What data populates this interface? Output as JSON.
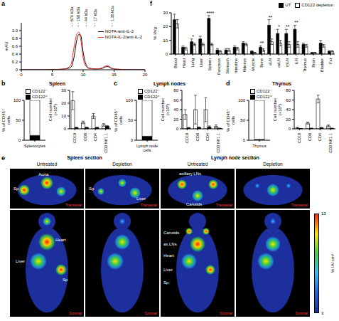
{
  "chart_data": [
    {
      "label": "a",
      "type": "line",
      "x": [
        0,
        2,
        4,
        6,
        7,
        8,
        8.5,
        9,
        9.3,
        9.6,
        10,
        10.5,
        11,
        12,
        13,
        13.5,
        14,
        14.5,
        15,
        16,
        18,
        20
      ],
      "series": [
        {
          "name": "NOTA-anti-IL-2",
          "color": "#000000",
          "values": [
            0,
            0,
            0,
            0.01,
            0.02,
            0.06,
            0.3,
            0.78,
            0.9,
            0.88,
            0.45,
            0.12,
            0.04,
            0.02,
            0.03,
            0.07,
            0.08,
            0.04,
            0.02,
            0.01,
            0,
            0
          ]
        },
        {
          "name": "NOTA-IL-2/anti-IL-2",
          "color": "#e8312a",
          "values": [
            0,
            0,
            0,
            0.01,
            0.02,
            0.12,
            0.55,
            0.92,
            0.96,
            0.78,
            0.3,
            0.08,
            0.03,
            0.02,
            0.04,
            0.09,
            0.1,
            0.05,
            0.02,
            0.01,
            0,
            0
          ]
        }
      ],
      "xlim": [
        0,
        20
      ],
      "xticks": [
        0,
        5,
        10,
        15,
        20
      ],
      "ylim": [
        0,
        1.2
      ],
      "yticks": [
        0,
        0.2,
        0.4,
        0.6,
        0.8,
        {
          "value": 1,
          "label": "1.0"
        }
      ],
      "ylabel": "mAU",
      "legend": "top-right",
      "markers": [
        {
          "x": 8.2,
          "label": "670 kDa"
        },
        {
          "x": 9.2,
          "label": "158 kDa"
        },
        {
          "x": 10.5,
          "label": "44 kDa"
        },
        {
          "x": 11.9,
          "label": "17 kDa"
        },
        {
          "x": 14.7,
          "label": "1.35 kDa"
        }
      ]
    },
    {
      "label": "f",
      "type": "bar",
      "categories": [
        "Blood",
        "Heart",
        "Lung",
        "Liver",
        "Spleen",
        "Pancreas",
        "Stomach",
        "Intestine",
        "Kidneys",
        "Muscle",
        "Bone",
        "aLN",
        "axLN",
        "mLN",
        "iLN",
        "Thymus",
        "Brain",
        "Bladder",
        "Fat"
      ],
      "series": [
        {
          "name": "UT",
          "color": "#000000",
          "values": [
            25,
            5,
            9,
            11,
            26,
            3,
            3,
            5,
            8,
            2,
            5,
            21,
            15,
            15,
            18,
            7,
            1,
            8,
            2
          ],
          "errors": [
            4,
            1,
            2,
            2,
            2,
            1,
            1,
            1,
            1,
            0.5,
            1,
            4,
            3,
            3,
            3,
            1,
            0.3,
            2,
            0.5
          ]
        },
        {
          "name": "CD122 depletion",
          "color": "#ffffff",
          "values": [
            22,
            4,
            7,
            7,
            7,
            2,
            3,
            4,
            7,
            1,
            3,
            9,
            8,
            7,
            7,
            6,
            1,
            6,
            2
          ],
          "errors": [
            3,
            1,
            1,
            1,
            1,
            0.5,
            1,
            1,
            1,
            0.3,
            1,
            2,
            2,
            2,
            2,
            1,
            0.3,
            1,
            0.5
          ]
        }
      ],
      "ylim": [
        0,
        30
      ],
      "yticks": [
        0,
        10,
        20,
        30
      ],
      "ylabel": "% IA/g",
      "legend": "top-right",
      "annotations": [
        {
          "category": "Lung",
          "text": "*"
        },
        {
          "category": "Spleen",
          "text": "****"
        },
        {
          "category": "Bone",
          "text": "**"
        },
        {
          "category": "aLN",
          "text": "**"
        },
        {
          "category": "axLN",
          "text": "*"
        },
        {
          "category": "mLN",
          "text": "**"
        },
        {
          "category": "iLN",
          "text": "**"
        }
      ]
    },
    {
      "label": "b",
      "title": "Spleen",
      "charts": [
        {
          "type": "bar",
          "stacked": true,
          "categories": [
            "Splenocytes"
          ],
          "series": [
            {
              "name": "CD122⁻",
              "color": "#ffffff",
              "values": [
                88
              ]
            },
            {
              "name": "CD122⁺",
              "color": "#000000",
              "values": [
                12
              ]
            }
          ],
          "ylim": [
            0,
            100
          ],
          "yticks": [
            0,
            50,
            100
          ],
          "ylabel": "% of CD45⁺ cells",
          "legend": "top"
        },
        {
          "type": "bar",
          "categories": [
            "CD19",
            "CD8",
            "CD4",
            "CD3 NK1.1"
          ],
          "series": [
            {
              "name": "CD122⁻",
              "color": "#ffffff",
              "values": [
                22,
                5,
                10,
                3
              ],
              "errors": [
                7,
                1,
                2,
                1
              ]
            },
            {
              "name": "CD122⁺",
              "color": "#000000",
              "values": [
                1,
                1,
                1,
                2
              ],
              "errors": [
                0.3,
                0.3,
                0.3,
                0.5
              ]
            }
          ],
          "ylim": [
            0,
            30
          ],
          "yticks": [
            0,
            10,
            20,
            30
          ],
          "ylabel": "Cell number (×10⁶)"
        }
      ]
    },
    {
      "label": "c",
      "title": "Lymph nodes",
      "charts": [
        {
          "type": "bar",
          "stacked": true,
          "categories": [
            "Lymph node cells"
          ],
          "series": [
            {
              "name": "CD122⁻",
              "color": "#ffffff",
              "values": [
                90
              ]
            },
            {
              "name": "CD122⁺",
              "color": "#000000",
              "values": [
                10
              ]
            }
          ],
          "ylim": [
            0,
            100
          ],
          "yticks": [
            0,
            50,
            100
          ],
          "ylabel": "% of CD45⁺ cells",
          "legend": "top"
        },
        {
          "type": "bar",
          "categories": [
            "CD19",
            "CD8",
            "CD4",
            "CD3 NK1.1"
          ],
          "series": [
            {
              "name": "CD122⁻",
              "color": "#ffffff",
              "values": [
                30,
                40,
                40,
                5
              ],
              "errors": [
                10,
                30,
                25,
                3
              ]
            },
            {
              "name": "CD122⁺",
              "color": "#000000",
              "values": [
                2,
                3,
                4,
                1
              ],
              "errors": [
                1,
                1,
                2,
                0.5
              ]
            }
          ],
          "ylim": [
            0,
            80
          ],
          "yticks": [
            0,
            20,
            40,
            60,
            80
          ],
          "ylabel": "Cell number (×10⁶)"
        }
      ]
    },
    {
      "label": "d",
      "title": "Thymus",
      "charts": [
        {
          "type": "bar",
          "stacked": true,
          "categories": [
            "Thymus"
          ],
          "series": [
            {
              "name": "CD122⁻",
              "color": "#ffffff",
              "values": [
                98
              ]
            },
            {
              "name": "CD122⁺",
              "color": "#000000",
              "values": [
                2
              ]
            }
          ],
          "ylim": [
            0,
            100
          ],
          "yticks": [
            0,
            50,
            100
          ],
          "ylabel": "% of CD45⁺ cells",
          "legend": "top"
        },
        {
          "type": "bar",
          "categories": [
            "CD19",
            "CD8",
            "CD4",
            "CD3 NK1.1"
          ],
          "series": [
            {
              "name": "CD122⁻",
              "color": "#ffffff",
              "values": [
                2,
                12,
                62,
                6
              ],
              "errors": [
                1,
                2,
                8,
                2
              ]
            },
            {
              "name": "CD122⁺",
              "color": "#000000",
              "values": [
                0.5,
                1,
                2,
                1
              ],
              "errors": [
                0.2,
                0.5,
                1,
                0.5
              ]
            }
          ],
          "ylim": [
            0,
            80
          ],
          "yticks": [
            0,
            20,
            40,
            60,
            80
          ],
          "ylabel": "Cell number (×10⁶)"
        }
      ]
    }
  ],
  "images": {
    "label": "e",
    "sections": [
      {
        "title": "Spleen section",
        "columns": [
          {
            "title": "Untreated",
            "labels": [
              [
                "Aorta",
                "Sp"
              ],
              [
                "Heart",
                "Liver",
                "Sp"
              ]
            ]
          },
          {
            "title": "Depletion",
            "labels": [
              [
                "Sp",
                "Liver"
              ]
            ]
          }
        ]
      },
      {
        "title": "Lymph node section",
        "columns": [
          {
            "title": "Untreated",
            "labels": [
              [
                "axillary LNs",
                "Carotids"
              ],
              [
                "Carotids",
                "ax.LNs",
                "Heart",
                "Liver",
                "Sp"
              ]
            ]
          },
          {
            "title": "Depletion"
          }
        ]
      }
    ],
    "views": [
      "Transaxial",
      "Coronal"
    ],
    "colorbar": {
      "range": [
        3,
        13
      ],
      "ticks": [
        3,
        13
      ],
      "label": "% IA/ cm³"
    }
  }
}
